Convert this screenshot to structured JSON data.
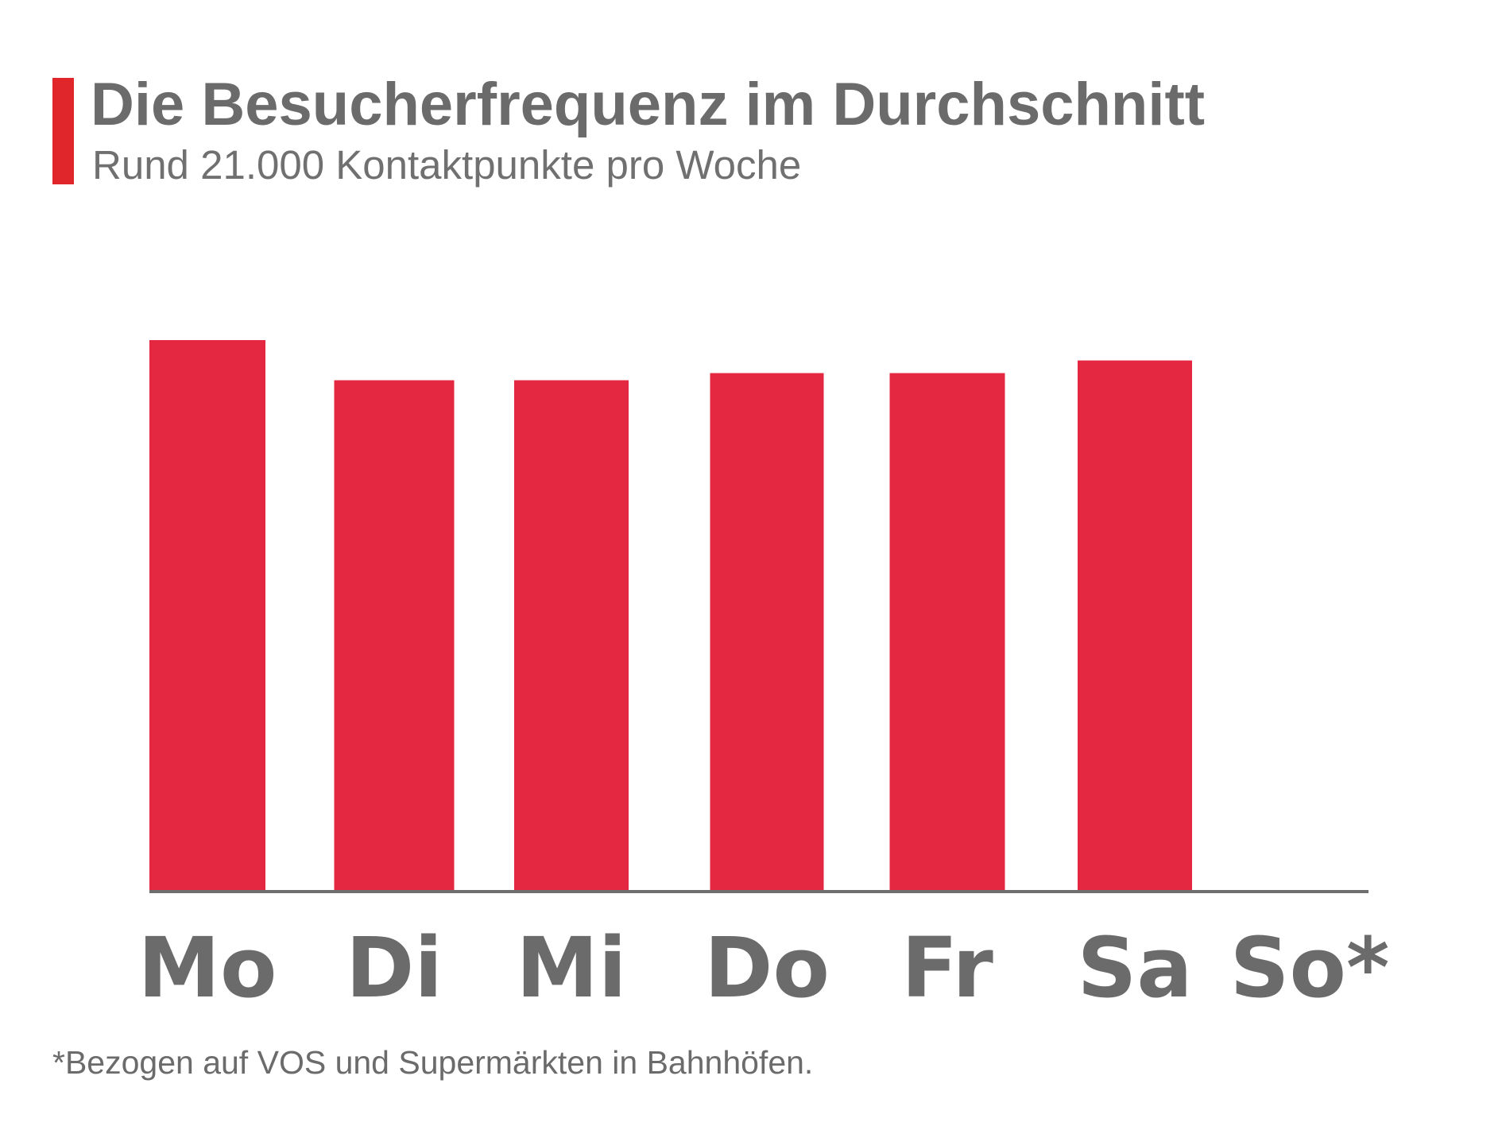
{
  "header": {
    "title": "Die Besucherfrequenz im Durchschnitt",
    "subtitle": "Rund 21.000 Kontaktpunkte pro Woche",
    "accent_color": "#e0262b"
  },
  "chart_data": {
    "type": "bar",
    "title": "Die Besucherfrequenz im Durchschnitt",
    "subtitle": "Rund 21.000 Kontaktpunkte pro Woche",
    "categories": [
      "Mo",
      "Di",
      "Mi",
      "Do",
      "Fr",
      "Sa",
      "So*"
    ],
    "values": [
      100,
      92.7,
      92.7,
      94.0,
      94.0,
      96.3,
      0
    ],
    "ylim": [
      0,
      100
    ],
    "grid": false,
    "legend": "none",
    "bar_color": "#e52842",
    "axis_color": "#6e6e6e",
    "label_color": "#6b6b6b"
  },
  "footnote": "*Bezogen auf VOS und Supermärkten in Bahnhöfen."
}
